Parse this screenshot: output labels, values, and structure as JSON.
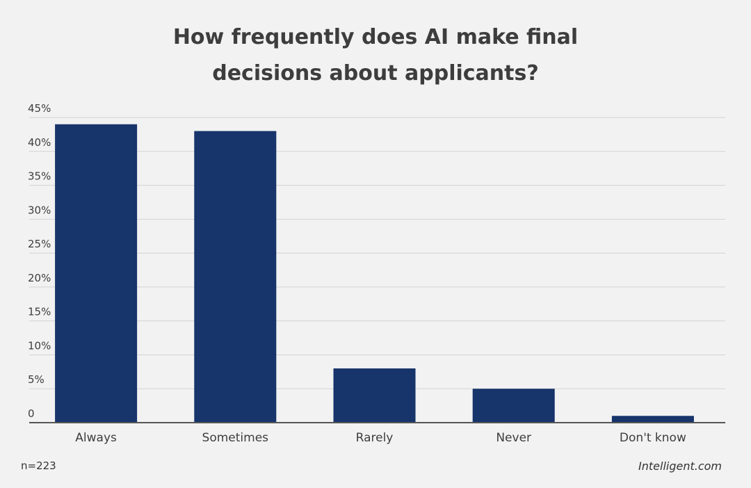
{
  "chart_data": {
    "type": "bar",
    "title": "How frequently does AI make final decisions about applicants?",
    "categories": [
      "Always",
      "Sometimes",
      "Rarely",
      "Never",
      "Don't know"
    ],
    "values": [
      44,
      43,
      8,
      5,
      1
    ],
    "xlabel": "",
    "ylabel": "",
    "ylim": [
      0,
      45
    ],
    "yticks": [
      0,
      5,
      10,
      15,
      20,
      25,
      30,
      35,
      40,
      45
    ],
    "ytick_labels": [
      "0",
      "5%",
      "10%",
      "15%",
      "20%",
      "25%",
      "30%",
      "35%",
      "40%",
      "45%"
    ],
    "grid": true,
    "legend": "none",
    "colors": {
      "bar": "#17346b",
      "grid": "#d3d3d3",
      "axis": "#555555",
      "background": "#f2f2f2",
      "text": "#3d3d3d"
    }
  },
  "footer": {
    "sample_size": "n=223",
    "brand": "Intelligent.com"
  }
}
